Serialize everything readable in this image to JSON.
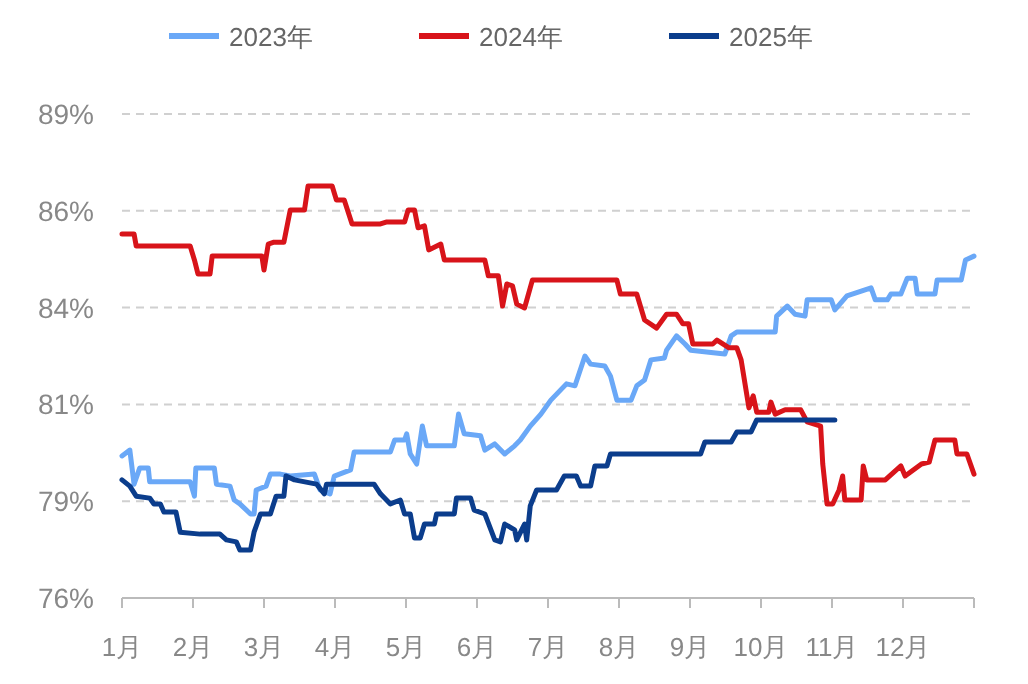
{
  "chart_data": {
    "type": "line",
    "legend": "top",
    "grid": "y",
    "marker": "none",
    "line_style": "solid",
    "xlim": [
      1,
      13
    ],
    "xticks": [
      {
        "value": 1,
        "label": "1月"
      },
      {
        "value": 2,
        "label": "2月"
      },
      {
        "value": 3,
        "label": "3月"
      },
      {
        "value": 4,
        "label": "4月"
      },
      {
        "value": 5,
        "label": "5月"
      },
      {
        "value": 6,
        "label": "6月"
      },
      {
        "value": 7,
        "label": "7月"
      },
      {
        "value": 8,
        "label": "8月"
      },
      {
        "value": 9,
        "label": "9月"
      },
      {
        "value": 10,
        "label": "10月"
      },
      {
        "value": 11,
        "label": "11月"
      },
      {
        "value": 12,
        "label": "12月"
      },
      {
        "value": 13,
        "label": null
      }
    ],
    "ylim": [
      76.4,
      88.9
    ],
    "yticks": [
      {
        "value": 76.4,
        "label": "76%"
      },
      {
        "value": 78.9,
        "label": "79%"
      },
      {
        "value": 81.4,
        "label": "81%"
      },
      {
        "value": 83.9,
        "label": "84%"
      },
      {
        "value": 86.4,
        "label": "86%"
      },
      {
        "value": 88.9,
        "label": "89%"
      }
    ],
    "series": [
      {
        "name": "2023年",
        "color": "#6aa8f7",
        "x": [
          1.0,
          1.11,
          1.17,
          1.25,
          1.37,
          1.39,
          1.96,
          2.02,
          2.04,
          2.3,
          2.33,
          2.52,
          2.58,
          2.66,
          2.81,
          2.86,
          2.89,
          3.03,
          3.09,
          3.23,
          3.37,
          3.71,
          3.79,
          3.93,
          3.99,
          4.22,
          4.27,
          4.78,
          4.84,
          4.98,
          5.01,
          5.06,
          5.15,
          5.23,
          5.29,
          5.68,
          5.74,
          5.82,
          6.05,
          6.11,
          6.25,
          6.39,
          6.53,
          6.61,
          6.75,
          6.9,
          7.04,
          7.26,
          7.38,
          7.52,
          7.6,
          7.8,
          7.88,
          7.97,
          8.17,
          8.25,
          8.36,
          8.45,
          8.64,
          8.67,
          8.81,
          8.93,
          9.01,
          9.49,
          9.58,
          9.66,
          10.2,
          10.22,
          10.37,
          10.48,
          10.62,
          10.65,
          10.99,
          11.04,
          11.21,
          11.55,
          11.61,
          11.78,
          11.83,
          11.97,
          12.06,
          12.17,
          12.2,
          12.45,
          12.48,
          12.82,
          12.88,
          13.0
        ],
        "values": [
          80.07,
          80.22,
          79.34,
          79.76,
          79.76,
          79.4,
          79.4,
          79.03,
          79.76,
          79.76,
          79.34,
          79.29,
          78.93,
          78.83,
          78.57,
          78.57,
          79.19,
          79.29,
          79.6,
          79.6,
          79.55,
          79.6,
          79.19,
          79.09,
          79.55,
          79.71,
          80.17,
          80.17,
          80.48,
          80.48,
          80.64,
          80.12,
          79.86,
          80.84,
          80.33,
          80.33,
          81.15,
          80.64,
          80.59,
          80.22,
          80.38,
          80.12,
          80.33,
          80.48,
          80.84,
          81.15,
          81.51,
          81.93,
          81.88,
          82.65,
          82.44,
          82.39,
          82.13,
          81.51,
          81.51,
          81.88,
          82.03,
          82.55,
          82.6,
          82.8,
          83.17,
          82.96,
          82.8,
          82.7,
          83.17,
          83.27,
          83.27,
          83.68,
          83.94,
          83.73,
          83.68,
          84.1,
          84.1,
          83.84,
          84.2,
          84.41,
          84.1,
          84.1,
          84.25,
          84.25,
          84.66,
          84.66,
          84.25,
          84.25,
          84.61,
          84.61,
          85.13,
          85.23
        ]
      },
      {
        "name": "2024年",
        "color": "#d8141a",
        "x": [
          1.0,
          1.17,
          1.2,
          1.96,
          2.02,
          2.07,
          2.24,
          2.27,
          2.97,
          3.0,
          3.06,
          3.14,
          3.28,
          3.37,
          3.57,
          3.62,
          3.96,
          4.02,
          4.13,
          4.24,
          4.64,
          4.72,
          4.98,
          5.03,
          5.12,
          5.17,
          5.26,
          5.32,
          5.49,
          5.54,
          6.11,
          6.16,
          6.3,
          6.36,
          6.42,
          6.5,
          6.56,
          6.67,
          6.78,
          7.97,
          8.02,
          8.25,
          8.36,
          8.53,
          8.67,
          8.81,
          8.9,
          8.98,
          9.04,
          9.32,
          9.38,
          9.55,
          9.66,
          9.72,
          9.83,
          9.89,
          9.94,
          10.11,
          10.14,
          10.2,
          10.34,
          10.56,
          10.65,
          10.84,
          10.87,
          10.93,
          11.01,
          11.1,
          11.15,
          11.18,
          11.41,
          11.44,
          11.49,
          11.75,
          11.97,
          12.03,
          12.26,
          12.37,
          12.45,
          12.73,
          12.76,
          12.9,
          13.0
        ],
        "values": [
          85.8,
          85.8,
          85.49,
          85.49,
          85.13,
          84.77,
          84.77,
          85.23,
          85.23,
          84.87,
          85.54,
          85.59,
          85.59,
          86.42,
          86.42,
          87.04,
          87.04,
          86.68,
          86.68,
          86.06,
          86.06,
          86.11,
          86.11,
          86.42,
          86.42,
          85.96,
          86.01,
          85.39,
          85.54,
          85.13,
          85.13,
          84.72,
          84.72,
          83.94,
          84.51,
          84.46,
          83.99,
          83.89,
          84.61,
          84.61,
          84.25,
          84.25,
          83.58,
          83.37,
          83.73,
          83.73,
          83.48,
          83.48,
          82.96,
          82.96,
          83.06,
          82.86,
          82.86,
          82.55,
          81.31,
          81.62,
          81.2,
          81.2,
          81.46,
          81.15,
          81.26,
          81.26,
          80.95,
          80.84,
          79.86,
          78.83,
          78.83,
          79.19,
          79.55,
          78.93,
          78.93,
          79.81,
          79.45,
          79.45,
          79.81,
          79.55,
          79.86,
          79.91,
          80.48,
          80.48,
          80.12,
          80.12,
          79.6
        ]
      },
      {
        "name": "2025年",
        "color": "#0b3d8c",
        "x": [
          1.0,
          1.11,
          1.2,
          1.39,
          1.45,
          1.54,
          1.59,
          1.76,
          1.82,
          2.1,
          2.38,
          2.47,
          2.61,
          2.66,
          2.81,
          2.86,
          2.95,
          3.09,
          3.17,
          3.28,
          3.31,
          3.43,
          3.74,
          3.85,
          3.88,
          4.55,
          4.64,
          4.78,
          4.92,
          4.98,
          5.06,
          5.12,
          5.2,
          5.26,
          5.4,
          5.43,
          5.68,
          5.71,
          5.91,
          5.96,
          6.11,
          6.25,
          6.33,
          6.39,
          6.53,
          6.56,
          6.67,
          6.7,
          6.75,
          6.84,
          7.12,
          7.23,
          7.4,
          7.46,
          7.6,
          7.66,
          7.83,
          7.88,
          9.15,
          9.21,
          9.58,
          9.66,
          9.86,
          9.94,
          11.04
        ],
        "values": [
          79.45,
          79.29,
          79.03,
          78.98,
          78.83,
          78.83,
          78.62,
          78.62,
          78.1,
          78.05,
          78.05,
          77.9,
          77.85,
          77.64,
          77.64,
          78.1,
          78.57,
          78.57,
          79.03,
          79.03,
          79.55,
          79.45,
          79.34,
          79.09,
          79.34,
          79.34,
          79.09,
          78.83,
          78.93,
          78.57,
          78.57,
          77.95,
          77.95,
          78.31,
          78.31,
          78.57,
          78.57,
          78.98,
          78.98,
          78.67,
          78.57,
          77.9,
          77.85,
          78.31,
          78.16,
          77.9,
          78.31,
          77.9,
          78.78,
          79.19,
          79.19,
          79.55,
          79.55,
          79.29,
          79.29,
          79.81,
          79.81,
          80.12,
          80.12,
          80.43,
          80.43,
          80.69,
          80.69,
          81.0,
          81.0
        ]
      }
    ]
  }
}
